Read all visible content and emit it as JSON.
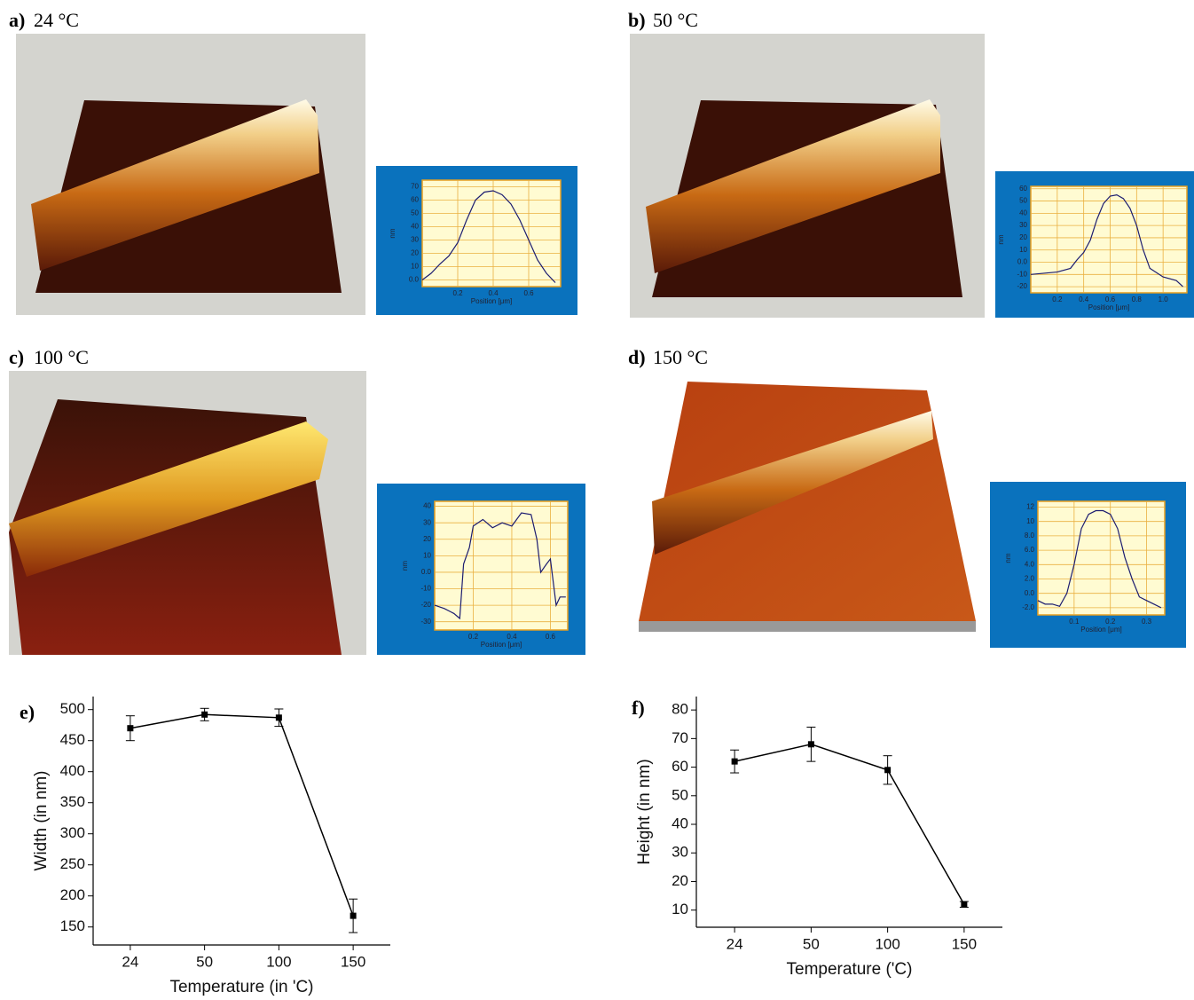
{
  "panels": [
    {
      "label": "a)",
      "title": "24 °C"
    },
    {
      "label": "b)",
      "title": "50 °C"
    },
    {
      "label": "c)",
      "title": "100 °C"
    },
    {
      "label": "d)",
      "title": "150 °C"
    },
    {
      "label": "e)"
    },
    {
      "label": "f)"
    }
  ],
  "chart_data": [
    {
      "type": "line",
      "xlabel": "Position [μm]",
      "ylabel": "nm",
      "grid": true,
      "x": [
        0,
        0.05,
        0.1,
        0.15,
        0.2,
        0.25,
        0.3,
        0.35,
        0.4,
        0.45,
        0.5,
        0.55,
        0.6,
        0.65,
        0.7,
        0.75
      ],
      "series": [
        {
          "color": "#1c1c70",
          "values": [
            0,
            5,
            12,
            18,
            28,
            45,
            60,
            66,
            67,
            64,
            57,
            45,
            30,
            15,
            5,
            -2
          ]
        }
      ],
      "xlim": [
        0,
        0.78
      ],
      "ylim": [
        -5,
        75
      ],
      "xticks": [
        0.2,
        0.4,
        0.6
      ],
      "yticks": [
        {
          "value": 0,
          "label": "0.0"
        },
        10,
        20,
        30,
        40,
        50,
        60,
        70
      ]
    },
    {
      "type": "line",
      "xlabel": "Position [μm]",
      "ylabel": "nm",
      "grid": true,
      "x": [
        0,
        0.1,
        0.2,
        0.3,
        0.35,
        0.4,
        0.45,
        0.5,
        0.55,
        0.6,
        0.65,
        0.7,
        0.75,
        0.8,
        0.85,
        0.9,
        1.0,
        1.1,
        1.15
      ],
      "series": [
        {
          "color": "#1c1c70",
          "values": [
            -10,
            -9,
            -8,
            -5,
            2,
            8,
            18,
            35,
            48,
            54,
            55,
            52,
            44,
            30,
            10,
            -5,
            -12,
            -15,
            -20
          ]
        }
      ],
      "xlim": [
        0,
        1.18
      ],
      "ylim": [
        -25,
        62
      ],
      "xticks": [
        0.2,
        0.4,
        0.6,
        0.8,
        {
          "value": 1,
          "label": "1.0"
        }
      ],
      "yticks": [
        -20,
        -10,
        {
          "value": 0,
          "label": "0.0"
        },
        10,
        20,
        30,
        40,
        50,
        60
      ]
    },
    {
      "type": "line",
      "xlabel": "Position [μm]",
      "ylabel": "nm",
      "grid": true,
      "x": [
        0,
        0.05,
        0.1,
        0.13,
        0.15,
        0.18,
        0.2,
        0.25,
        0.3,
        0.35,
        0.4,
        0.45,
        0.5,
        0.53,
        0.55,
        0.58,
        0.6,
        0.63,
        0.65,
        0.68
      ],
      "series": [
        {
          "color": "#1c1c70",
          "values": [
            -20,
            -22,
            -25,
            -28,
            5,
            15,
            28,
            32,
            27,
            30,
            28,
            36,
            35,
            20,
            0,
            5,
            8,
            -20,
            -15,
            -15
          ]
        }
      ],
      "xlim": [
        0,
        0.69
      ],
      "ylim": [
        -35,
        43
      ],
      "xticks": [
        0.2,
        0.4,
        0.6
      ],
      "yticks": [
        -30,
        -20,
        -10,
        {
          "value": 0,
          "label": "0.0"
        },
        10,
        20,
        30,
        40
      ]
    },
    {
      "type": "line",
      "xlabel": "Position [μm]",
      "ylabel": "nm",
      "grid": true,
      "x": [
        0,
        0.02,
        0.04,
        0.06,
        0.08,
        0.1,
        0.12,
        0.14,
        0.16,
        0.18,
        0.2,
        0.22,
        0.24,
        0.26,
        0.28,
        0.3,
        0.32,
        0.34
      ],
      "series": [
        {
          "color": "#1c1c70",
          "values": [
            -1,
            -1.5,
            -1.5,
            -1.8,
            0,
            4,
            9,
            11,
            11.5,
            11.5,
            11,
            9,
            5,
            2,
            -0.5,
            -1,
            -1.5,
            -2
          ]
        }
      ],
      "xlim": [
        0,
        0.35
      ],
      "ylim": [
        -3,
        12.8
      ],
      "xticks": [
        0.1,
        0.2,
        0.3
      ],
      "yticks": [
        {
          "value": -2,
          "label": "-2.0"
        },
        {
          "value": 0,
          "label": "0.0"
        },
        {
          "value": 2,
          "label": "2.0"
        },
        {
          "value": 4,
          "label": "4.0"
        },
        {
          "value": 6,
          "label": "6.0"
        },
        {
          "value": 8,
          "label": "8.0"
        },
        10,
        12
      ]
    },
    {
      "type": "line",
      "xlabel": "Temperature (in 'C)",
      "ylabel": "Width (in nm)",
      "grid": false,
      "categories": [
        "24",
        "50",
        "100",
        "150"
      ],
      "series": [
        {
          "color": "#000000",
          "values": [
            470,
            492,
            487,
            168
          ],
          "errors": [
            20,
            10,
            14,
            27
          ]
        }
      ],
      "ylim": [
        121,
        521
      ],
      "yticks": [
        150,
        200,
        250,
        300,
        350,
        400,
        450,
        500
      ]
    },
    {
      "type": "line",
      "xlabel": "Temperature ('C)",
      "ylabel": "Height (in nm)",
      "grid": false,
      "categories": [
        "24",
        "50",
        "100",
        "150"
      ],
      "series": [
        {
          "color": "#000000",
          "values": [
            62,
            68,
            59,
            12
          ],
          "errors": [
            4,
            6,
            5,
            1
          ]
        }
      ],
      "ylim": [
        4,
        84.7
      ],
      "yticks": [
        10,
        20,
        30,
        40,
        50,
        60,
        70,
        80
      ]
    }
  ]
}
